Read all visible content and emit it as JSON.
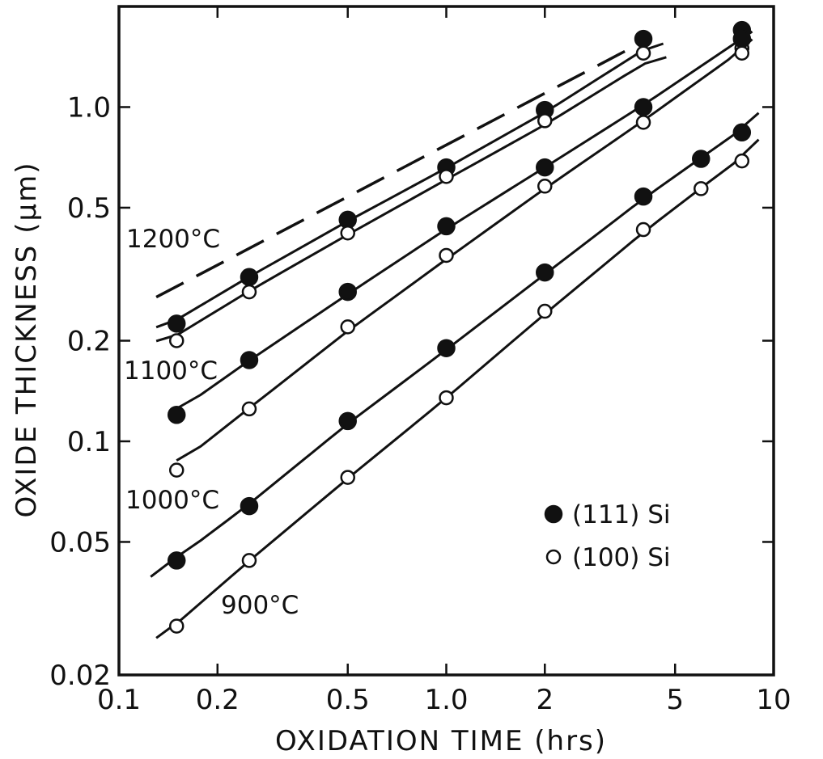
{
  "chart_data": {
    "type": "scatter",
    "xlabel": "OXIDATION  TIME  (hrs)",
    "ylabel": "OXIDE  THICKNESS  (μm)",
    "xscale": "log",
    "yscale": "log",
    "xlim": [
      0.1,
      10
    ],
    "ylim": [
      0.02,
      2.0
    ],
    "x_ticks": [
      0.1,
      0.2,
      0.5,
      1.0,
      2,
      5,
      10
    ],
    "x_tick_labels": [
      "0.1",
      "0.2",
      "0.5",
      "1.0",
      "2",
      "5",
      "10"
    ],
    "y_ticks": [
      0.02,
      0.05,
      0.1,
      0.2,
      0.5,
      1.0
    ],
    "y_tick_labels": [
      "0.02",
      "0.05",
      "0.1",
      "0.2",
      "0.5",
      "1.0"
    ],
    "grid": false,
    "legend": {
      "position": "lower-right",
      "entries": [
        {
          "marker": "filled-circle",
          "label": "(111)  Si"
        },
        {
          "marker": "open-circle",
          "label": "(100)  Si"
        }
      ]
    },
    "temperature_labels": [
      "1200°C",
      "1100°C",
      "1000°C",
      "900°C"
    ],
    "series": [
      {
        "orientation": "(111)",
        "temperature": "1100°C",
        "marker": "filled-circle",
        "x": [
          0.15,
          0.25,
          0.5,
          1.0,
          2.0,
          4.0,
          8.0
        ],
        "y": [
          0.225,
          0.31,
          0.46,
          0.66,
          0.98,
          1.6,
          1.7
        ],
        "fit_x": [
          0.13,
          4.6
        ]
      },
      {
        "orientation": "(100)",
        "temperature": "1100°C",
        "marker": "open-circle",
        "x": [
          0.15,
          0.25,
          0.5,
          1.0,
          2.0,
          4.0,
          8.0
        ],
        "y": [
          0.2,
          0.28,
          0.42,
          0.62,
          0.91,
          1.45,
          1.5
        ],
        "fit_x": [
          0.13,
          4.7
        ]
      },
      {
        "orientation": "(111)",
        "temperature": "1000°C",
        "marker": "filled-circle",
        "x": [
          0.15,
          0.25,
          0.5,
          1.0,
          2.0,
          4.0,
          8.0
        ],
        "y": [
          0.12,
          0.175,
          0.28,
          0.44,
          0.66,
          1.0,
          1.6
        ],
        "fit_x": [
          0.15,
          8.6
        ]
      },
      {
        "orientation": "(100)",
        "temperature": "1000°C",
        "marker": "open-circle",
        "x": [
          0.15,
          0.25,
          0.5,
          1.0,
          2.0,
          4.0,
          8.0
        ],
        "y": [
          0.082,
          0.125,
          0.22,
          0.36,
          0.58,
          0.9,
          1.45
        ],
        "fit_x": [
          0.15,
          8.6
        ]
      },
      {
        "orientation": "(111)",
        "temperature": "900°C",
        "marker": "filled-circle",
        "x": [
          0.15,
          0.25,
          0.5,
          1.0,
          2.0,
          4.0,
          6.0,
          8.0
        ],
        "y": [
          0.044,
          0.064,
          0.115,
          0.19,
          0.32,
          0.54,
          0.7,
          0.84
        ],
        "fit_x": [
          0.125,
          9.0
        ]
      },
      {
        "orientation": "(100)",
        "temperature": "900°C",
        "marker": "open-circle",
        "x": [
          0.15,
          0.25,
          0.5,
          1.0,
          2.0,
          4.0,
          6.0,
          8.0
        ],
        "y": [
          0.028,
          0.044,
          0.078,
          0.135,
          0.245,
          0.43,
          0.57,
          0.69
        ],
        "fit_x": [
          0.13,
          9.0
        ]
      }
    ],
    "dashed_line": {
      "temperature": "1200°C",
      "x": [
        0.13,
        3.9
      ],
      "y": [
        0.27,
        1.55
      ]
    }
  }
}
